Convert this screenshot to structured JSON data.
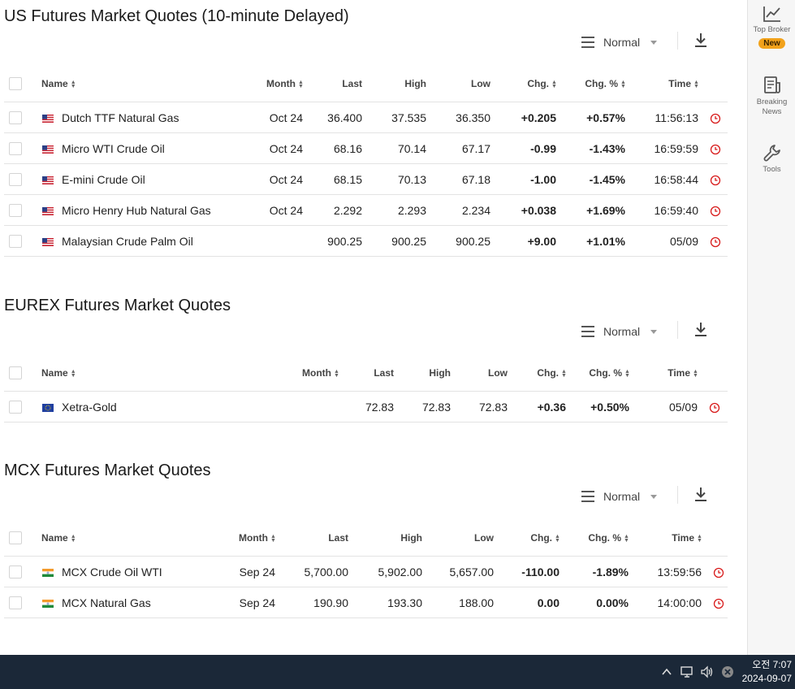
{
  "us": {
    "title": "US Futures Market Quotes (10-minute Delayed)",
    "view": "Normal",
    "headers": {
      "name": "Name",
      "month": "Month",
      "last": "Last",
      "high": "High",
      "low": "Low",
      "chg": "Chg.",
      "chgpct": "Chg. %",
      "time": "Time"
    },
    "rows": [
      {
        "name": "Dutch TTF Natural Gas",
        "month": "Oct 24",
        "last": "36.400",
        "high": "37.535",
        "low": "36.350",
        "chg": "+0.205",
        "chgpct": "+0.57%",
        "time": "11:56:13",
        "dir": "pos",
        "flag": "us"
      },
      {
        "name": "Micro WTI Crude Oil",
        "month": "Oct 24",
        "last": "68.16",
        "high": "70.14",
        "low": "67.17",
        "chg": "-0.99",
        "chgpct": "-1.43%",
        "time": "16:59:59",
        "dir": "neg",
        "flag": "us"
      },
      {
        "name": "E-mini Crude Oil",
        "month": "Oct 24",
        "last": "68.15",
        "high": "70.13",
        "low": "67.18",
        "chg": "-1.00",
        "chgpct": "-1.45%",
        "time": "16:58:44",
        "dir": "neg",
        "flag": "us"
      },
      {
        "name": "Micro Henry Hub Natural Gas",
        "month": "Oct 24",
        "last": "2.292",
        "high": "2.293",
        "low": "2.234",
        "chg": "+0.038",
        "chgpct": "+1.69%",
        "time": "16:59:40",
        "dir": "pos",
        "flag": "us"
      },
      {
        "name": "Malaysian Crude Palm Oil",
        "month": "",
        "last": "900.25",
        "high": "900.25",
        "low": "900.25",
        "chg": "+9.00",
        "chgpct": "+1.01%",
        "time": "05/09",
        "dir": "pos",
        "flag": "us"
      }
    ]
  },
  "eurex": {
    "title": "EUREX Futures Market Quotes",
    "view": "Normal",
    "headers": {
      "name": "Name",
      "month": "Month",
      "last": "Last",
      "high": "High",
      "low": "Low",
      "chg": "Chg.",
      "chgpct": "Chg. %",
      "time": "Time"
    },
    "rows": [
      {
        "name": "Xetra-Gold",
        "month": "",
        "last": "72.83",
        "high": "72.83",
        "low": "72.83",
        "chg": "+0.36",
        "chgpct": "+0.50%",
        "time": "05/09",
        "dir": "pos",
        "flag": "eu"
      }
    ]
  },
  "mcx": {
    "title": "MCX Futures Market Quotes",
    "view": "Normal",
    "headers": {
      "name": "Name",
      "month": "Month",
      "last": "Last",
      "high": "High",
      "low": "Low",
      "chg": "Chg.",
      "chgpct": "Chg. %",
      "time": "Time"
    },
    "rows": [
      {
        "name": "MCX Crude Oil WTI",
        "month": "Sep 24",
        "last": "5,700.00",
        "high": "5,902.00",
        "low": "5,657.00",
        "chg": "-110.00",
        "chgpct": "-1.89%",
        "time": "13:59:56",
        "dir": "neg",
        "flag": "in"
      },
      {
        "name": "MCX Natural Gas",
        "month": "Sep 24",
        "last": "190.90",
        "high": "193.30",
        "low": "188.00",
        "chg": "0.00",
        "chgpct": "0.00%",
        "time": "14:00:00",
        "dir": "zero",
        "flag": "in"
      }
    ]
  },
  "sidebar": {
    "top_broker": {
      "label": "Top Broker",
      "badge": "New"
    },
    "breaking_news": {
      "label_line1": "Breaking",
      "label_line2": "News"
    },
    "tools": {
      "label": "Tools"
    }
  },
  "taskbar": {
    "time": "오전 7:07",
    "date": "2024-09-07"
  },
  "colors": {
    "positive": "#0a8a2f",
    "negative": "#d81b1b",
    "badge": "#f2a21b",
    "taskbar": "#1b2838",
    "clock_icon": "#d81b1b"
  },
  "icons": [
    "hamburger-icon",
    "download-icon",
    "sort-icon",
    "flag-us-icon",
    "flag-eu-icon",
    "flag-india-icon",
    "clock-icon",
    "chart-icon",
    "news-icon",
    "wrench-icon",
    "chevron-up-icon",
    "network-icon",
    "speaker-icon",
    "close-circle-icon"
  ]
}
